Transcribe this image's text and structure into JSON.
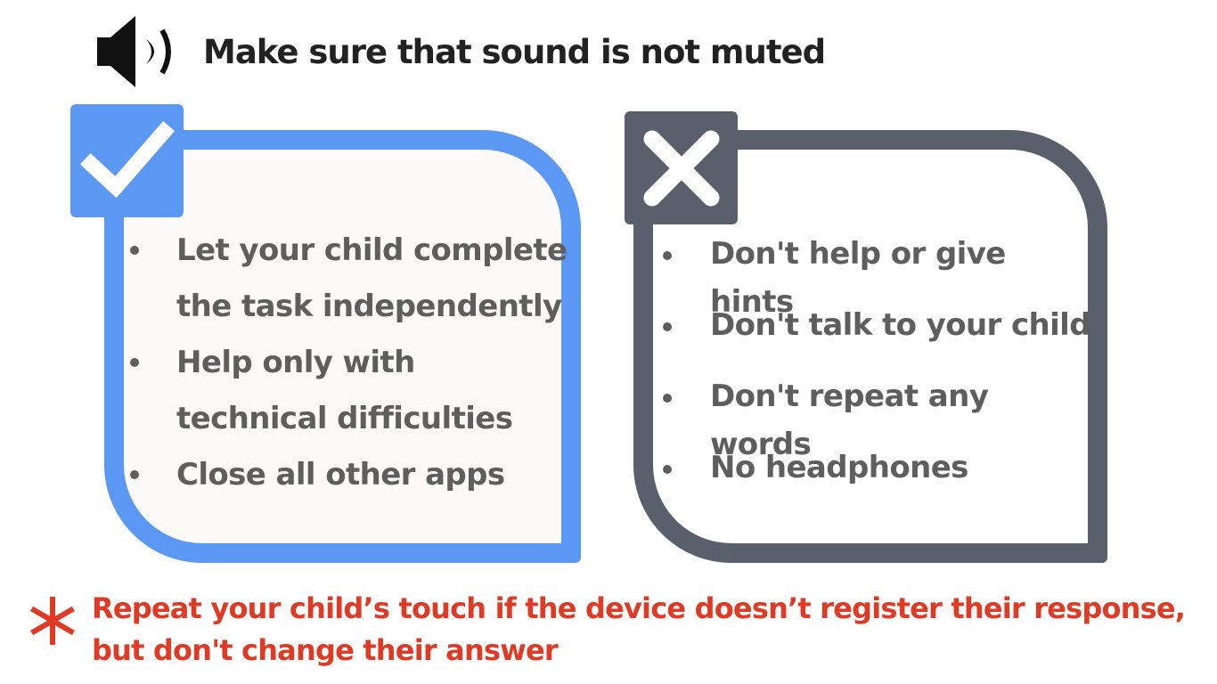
{
  "header": {
    "icon": "speaker-volume-icon",
    "text": "Make sure that sound is not muted"
  },
  "do_card": {
    "icon": "checkmark-icon",
    "accent_color": "#5b98f3",
    "items": [
      "Let your child complete the task independently",
      "Help only with technical difficulties",
      "Close all other apps"
    ]
  },
  "dont_card": {
    "icon": "cross-icon",
    "accent_color": "#5a5f6c",
    "items": [
      "Don't help or give hints",
      "Don't talk to your child",
      "Don't repeat any words",
      "No headphones"
    ]
  },
  "note": {
    "icon": "asterisk-icon",
    "color": "#e03a25",
    "text": "Repeat your child’s touch if the device doesn’t register their response, but don't change their answer"
  }
}
